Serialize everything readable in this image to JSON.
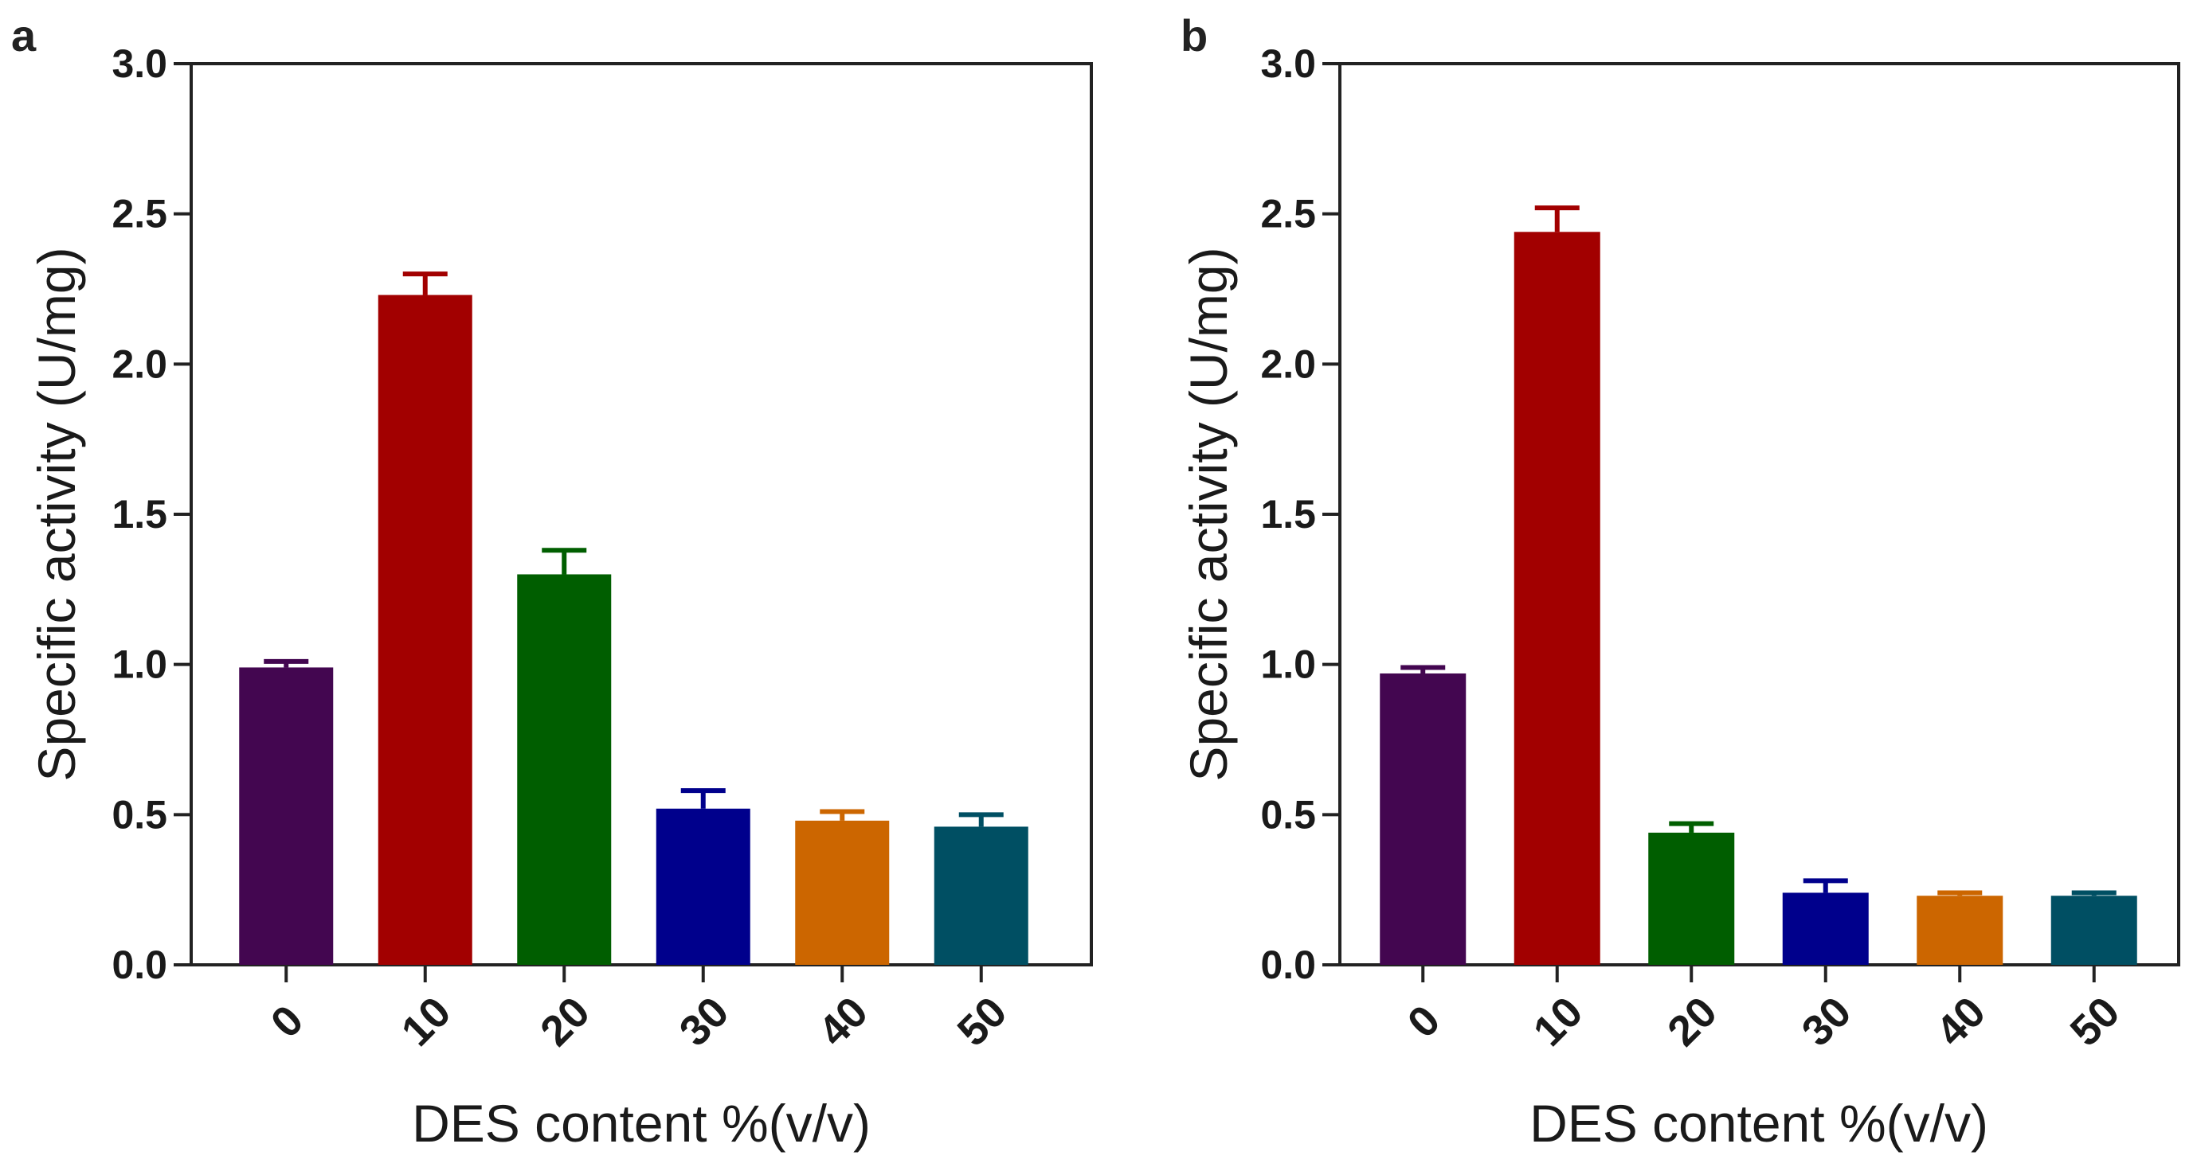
{
  "chart_data": [
    {
      "type": "bar",
      "panel_label": "a",
      "categories": [
        "0",
        "10",
        "20",
        "30",
        "40",
        "50"
      ],
      "values": [
        0.99,
        2.23,
        1.3,
        0.52,
        0.48,
        0.46
      ],
      "errors": [
        0.02,
        0.07,
        0.08,
        0.06,
        0.03,
        0.04
      ],
      "colors": [
        "#430650",
        "#a20000",
        "#005e00",
        "#00008c",
        "#cc6600",
        "#004f63"
      ],
      "xlabel": "DES content %(v/v)",
      "ylabel": "Specific activity (U/mg)",
      "ylim": [
        0,
        3.0
      ],
      "yticks": [
        "0.0",
        "0.5",
        "1.0",
        "1.5",
        "2.0",
        "2.5",
        "3.0"
      ],
      "grid": false,
      "legend": "none"
    },
    {
      "type": "bar",
      "panel_label": "b",
      "categories": [
        "0",
        "10",
        "20",
        "30",
        "40",
        "50"
      ],
      "values": [
        0.97,
        2.44,
        0.44,
        0.24,
        0.23,
        0.23
      ],
      "errors": [
        0.02,
        0.08,
        0.03,
        0.04,
        0.01,
        0.01
      ],
      "colors": [
        "#430650",
        "#a20000",
        "#005e00",
        "#00008c",
        "#cc6600",
        "#004f63"
      ],
      "xlabel": "DES content %(v/v)",
      "ylabel": "Specific activity (U/mg)",
      "ylim": [
        0,
        3.0
      ],
      "yticks": [
        "0.0",
        "0.5",
        "1.0",
        "1.5",
        "2.0",
        "2.5",
        "3.0"
      ],
      "grid": false,
      "legend": "none"
    }
  ]
}
